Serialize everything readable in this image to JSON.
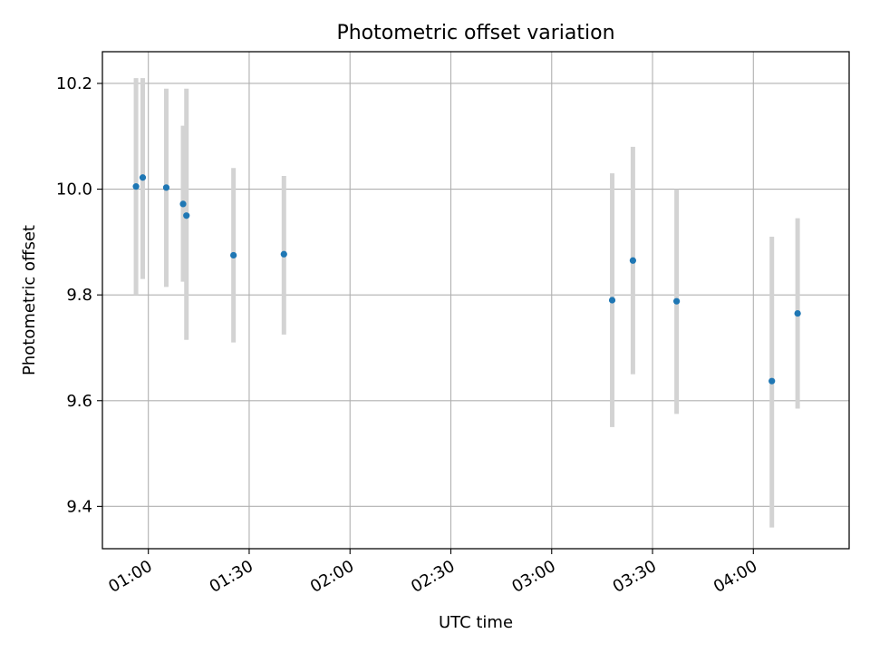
{
  "chart_data": {
    "type": "scatter",
    "title": "Photometric offset variation",
    "xlabel": "UTC time",
    "ylabel": "Photometric offset",
    "x_unit": "UTC time (HH:MM)",
    "xlim": [
      "00:46:20",
      "04:28:30"
    ],
    "ylim": [
      9.32,
      10.26
    ],
    "x_ticks": [
      "01:00",
      "01:30",
      "02:00",
      "02:30",
      "03:00",
      "03:30",
      "04:00"
    ],
    "y_ticks": [
      "9.4",
      "9.6",
      "9.8",
      "10.0",
      "10.2"
    ],
    "grid": true,
    "error_bars": "vertical",
    "colors": {
      "points": "#1f77b4",
      "error_bars": "#d3d3d3",
      "grid": "#b0b0b0"
    },
    "points": [
      {
        "x": "00:56:20",
        "y": 10.005,
        "y_low": 9.8,
        "y_high": 10.21
      },
      {
        "x": "00:58:20",
        "y": 10.022,
        "y_low": 9.83,
        "y_high": 10.21
      },
      {
        "x": "01:05:20",
        "y": 10.003,
        "y_low": 9.815,
        "y_high": 10.19
      },
      {
        "x": "01:10:20",
        "y": 9.972,
        "y_low": 9.825,
        "y_high": 10.12
      },
      {
        "x": "01:11:20",
        "y": 9.95,
        "y_low": 9.715,
        "y_high": 10.19
      },
      {
        "x": "01:25:20",
        "y": 9.875,
        "y_low": 9.71,
        "y_high": 10.04
      },
      {
        "x": "01:40:20",
        "y": 9.877,
        "y_low": 9.725,
        "y_high": 10.025
      },
      {
        "x": "03:18:00",
        "y": 9.79,
        "y_low": 9.55,
        "y_high": 10.03
      },
      {
        "x": "03:24:10",
        "y": 9.865,
        "y_low": 9.65,
        "y_high": 10.08
      },
      {
        "x": "03:37:10",
        "y": 9.788,
        "y_low": 9.575,
        "y_high": 10.0
      },
      {
        "x": "04:05:30",
        "y": 9.637,
        "y_low": 9.36,
        "y_high": 9.91
      },
      {
        "x": "04:13:10",
        "y": 9.765,
        "y_low": 9.585,
        "y_high": 9.945
      }
    ]
  }
}
